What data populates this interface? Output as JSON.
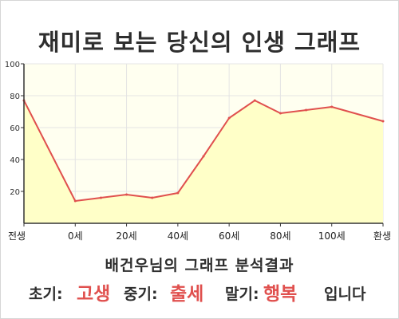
{
  "title": "재미로 보는 당신의 인생 그래프",
  "summary": "배건우님의 그래프 분석결과",
  "verdict": {
    "early_label": "초기:",
    "early_value": "고생",
    "mid_label": "중기:",
    "mid_value": "출세",
    "late_label": "말기:",
    "late_value": "행복",
    "ending": "입니다"
  },
  "colors": {
    "line": "#e0504e",
    "fill": "#ffffc8",
    "plot_bg": "#fffff0",
    "accent": "#e0504e"
  },
  "chart_data": {
    "type": "area",
    "categories": [
      "전생",
      "0세",
      "20세",
      "40세",
      "60세",
      "80세",
      "100세",
      "환생"
    ],
    "x": [
      0,
      1,
      1.5,
      2,
      2.5,
      3,
      3.5,
      4,
      4.5,
      5,
      5.5,
      6,
      7
    ],
    "y": [
      77,
      14,
      16,
      18,
      16,
      19,
      42,
      66,
      77,
      69,
      71,
      73,
      64
    ],
    "yticks": [
      20,
      40,
      60,
      80,
      100
    ],
    "ylim": [
      0,
      100
    ],
    "grid": true,
    "title": "",
    "xlabel": "",
    "ylabel": ""
  }
}
